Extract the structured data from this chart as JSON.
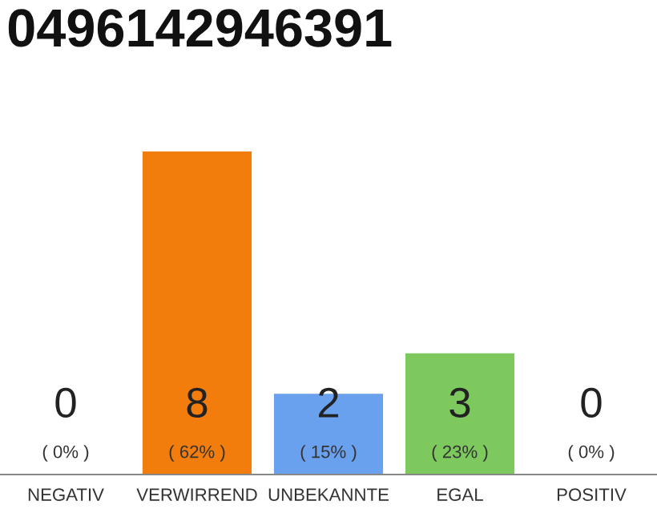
{
  "chart_data": {
    "type": "bar",
    "title": "0496142946391",
    "categories": [
      "NEGATIV",
      "VERWIRREND",
      "UNBEKANNTE",
      "EGAL",
      "POSITIV"
    ],
    "values": [
      0,
      8,
      2,
      3,
      0
    ],
    "colors": [
      "#bbbbbb",
      "#f27d0c",
      "#6aa1ee",
      "#7dc95e",
      "#bbbbbb"
    ],
    "data_labels": true,
    "annotations": [
      "( 0% )",
      "( 62% )",
      "( 15% )",
      "( 23% )",
      "( 0% )"
    ],
    "tick_labels": "x",
    "grid": false,
    "legend": false
  }
}
